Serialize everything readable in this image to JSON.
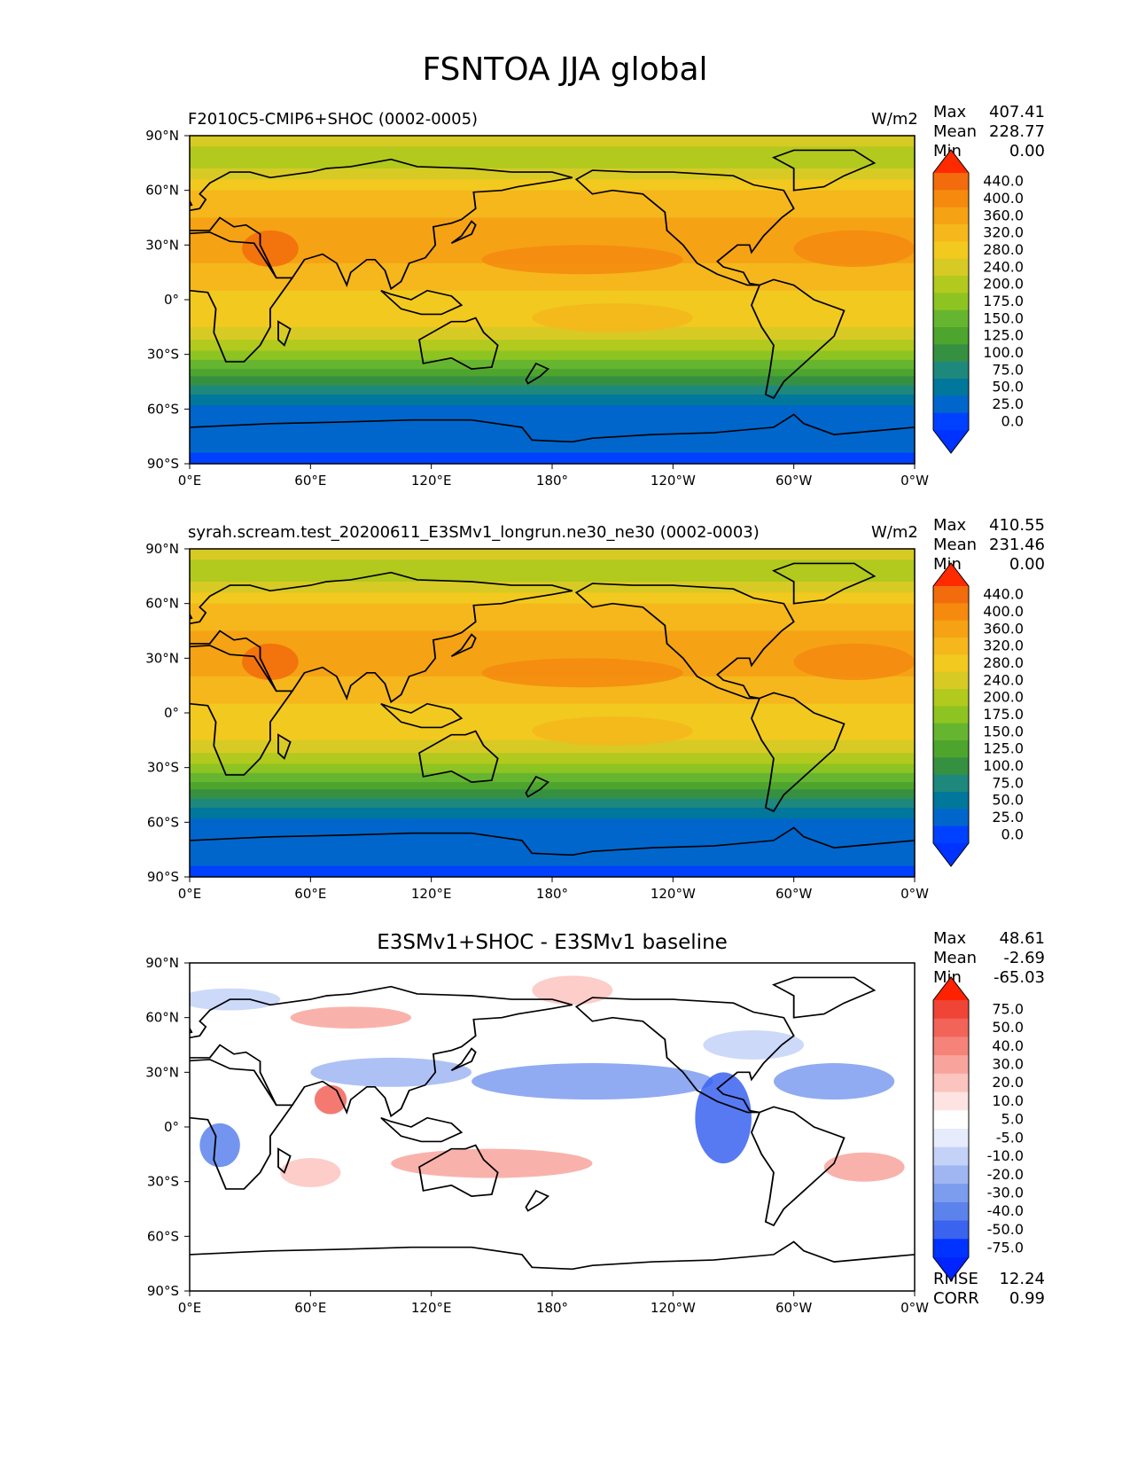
{
  "figure": {
    "title": "FSNTOA JJA global"
  },
  "colors": {
    "abs_levels": [
      "#0040ff",
      "#0066cc",
      "#00779b",
      "#1f887c",
      "#369042",
      "#4da52d",
      "#66b530",
      "#8ec421",
      "#b2c91e",
      "#d8ca24",
      "#f2c91e",
      "#f5b71c",
      "#f5a214",
      "#f58a0f",
      "#f26b0c",
      "#ee4a09"
    ],
    "abs_extend_min": "#0033ff",
    "abs_extend_max": "#ff2a00",
    "diff_levels": [
      "#0033ff",
      "#3a63f0",
      "#5c82ec",
      "#7c9cee",
      "#a0b6f3",
      "#c4d2f8",
      "#e6ecfc",
      "#ffffff",
      "#fde4e2",
      "#fbc4bf",
      "#f8a49c",
      "#f5837a",
      "#f26358",
      "#ef4436"
    ],
    "diff_extend_min": "#0024ff",
    "diff_extend_max": "#ff2200",
    "coast": "#000000"
  },
  "chart_data": [
    {
      "type": "heatmap",
      "title": "F2010C5-CMIP6+SHOC (0002-0005)",
      "units": "W/m2",
      "stats": {
        "max_label": "Max",
        "max": "407.41",
        "mean_label": "Mean",
        "mean": "228.77",
        "min_label": "Min",
        "min": "0.00"
      },
      "x_ticks": [
        "0°E",
        "60°E",
        "120°E",
        "180°",
        "120°W",
        "60°W",
        "0°W"
      ],
      "y_ticks": [
        "90°N",
        "60°N",
        "30°N",
        "0°",
        "30°S",
        "60°S",
        "90°S"
      ],
      "colorbar": [
        "440.0",
        "400.0",
        "360.0",
        "320.0",
        "280.0",
        "240.0",
        "200.0",
        "175.0",
        "150.0",
        "125.0",
        "100.0",
        "75.0",
        "50.0",
        "25.0",
        "0.0"
      ],
      "xlim": [
        0,
        360
      ],
      "ylim": [
        -90,
        90
      ]
    },
    {
      "type": "heatmap",
      "title": "syrah.scream.test_20200611_E3SMv1_longrun.ne30_ne30 (0002-0003)",
      "units": "W/m2",
      "stats": {
        "max_label": "Max",
        "max": "410.55",
        "mean_label": "Mean",
        "mean": "231.46",
        "min_label": "Min",
        "min": "0.00"
      },
      "x_ticks": [
        "0°E",
        "60°E",
        "120°E",
        "180°",
        "120°W",
        "60°W",
        "0°W"
      ],
      "y_ticks": [
        "90°N",
        "60°N",
        "30°N",
        "0°",
        "30°S",
        "60°S",
        "90°S"
      ],
      "colorbar": [
        "440.0",
        "400.0",
        "360.0",
        "320.0",
        "280.0",
        "240.0",
        "200.0",
        "175.0",
        "150.0",
        "125.0",
        "100.0",
        "75.0",
        "50.0",
        "25.0",
        "0.0"
      ],
      "xlim": [
        0,
        360
      ],
      "ylim": [
        -90,
        90
      ]
    },
    {
      "type": "heatmap",
      "title": "E3SMv1+SHOC - E3SMv1 baseline",
      "units": "",
      "stats": {
        "max_label": "Max",
        "max": "48.61",
        "mean_label": "Mean",
        "mean": "-2.69",
        "min_label": "Min",
        "min": "-65.03"
      },
      "extra_stats": {
        "rmse_label": "RMSE",
        "rmse": "12.24",
        "corr_label": "CORR",
        "corr": "0.99"
      },
      "x_ticks": [
        "0°E",
        "60°E",
        "120°E",
        "180°",
        "120°W",
        "60°W",
        "0°W"
      ],
      "y_ticks": [
        "90°N",
        "60°N",
        "30°N",
        "0°",
        "30°S",
        "60°S",
        "90°S"
      ],
      "colorbar": [
        "75.0",
        "50.0",
        "40.0",
        "30.0",
        "20.0",
        "10.0",
        "5.0",
        "-5.0",
        "-10.0",
        "-20.0",
        "-30.0",
        "-40.0",
        "-50.0",
        "-75.0"
      ],
      "xlim": [
        0,
        360
      ],
      "ylim": [
        -90,
        90
      ]
    }
  ]
}
